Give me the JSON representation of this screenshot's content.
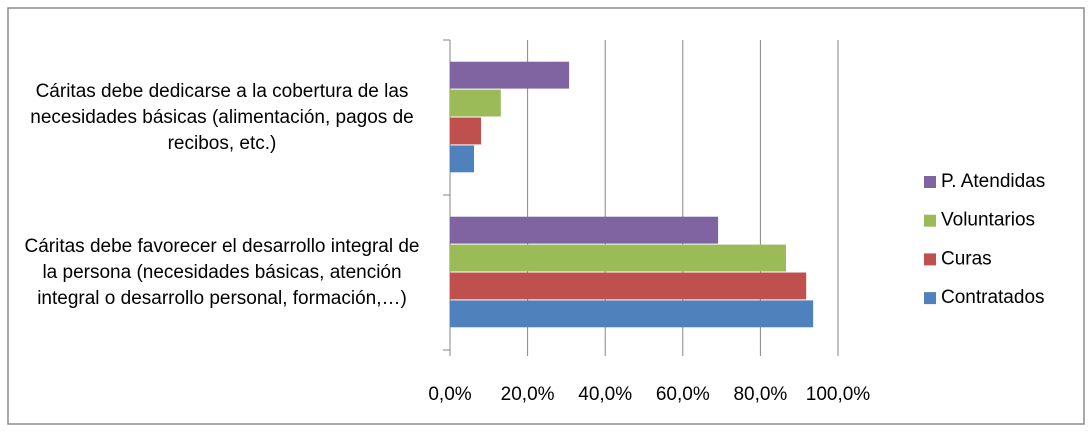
{
  "chart_data": {
    "type": "hbar",
    "categories": [
      "Cáritas debe dedicarse a la cobertura de las necesidades básicas (alimentación, pagos de recibos, etc.)",
      "Cáritas debe favorecer el desarrollo integral de la persona (necesidades básicas,   atención integral o desarrollo personal, formación,…)"
    ],
    "series": [
      {
        "name": "Contratados",
        "color": "#4f81bd",
        "values": [
          6.2,
          93.6
        ]
      },
      {
        "name": "Curas",
        "color": "#c0504d",
        "values": [
          8.0,
          91.8
        ]
      },
      {
        "name": "Voluntarios",
        "color": "#9bbb59",
        "values": [
          13.1,
          86.6
        ]
      },
      {
        "name": "P. Atendidas",
        "color": "#8064a2",
        "values": [
          30.7,
          69.1
        ]
      }
    ],
    "xlim": [
      0,
      100
    ],
    "xticks": [
      {
        "value": 0,
        "label": "0,0%"
      },
      {
        "value": 20,
        "label": "20,0%"
      },
      {
        "value": 40,
        "label": "40,0%"
      },
      {
        "value": 60,
        "label": "60,0%"
      },
      {
        "value": 80,
        "label": "80,0%"
      },
      {
        "value": 100,
        "label": "100,0%"
      }
    ],
    "grid": true,
    "legend": "right"
  }
}
